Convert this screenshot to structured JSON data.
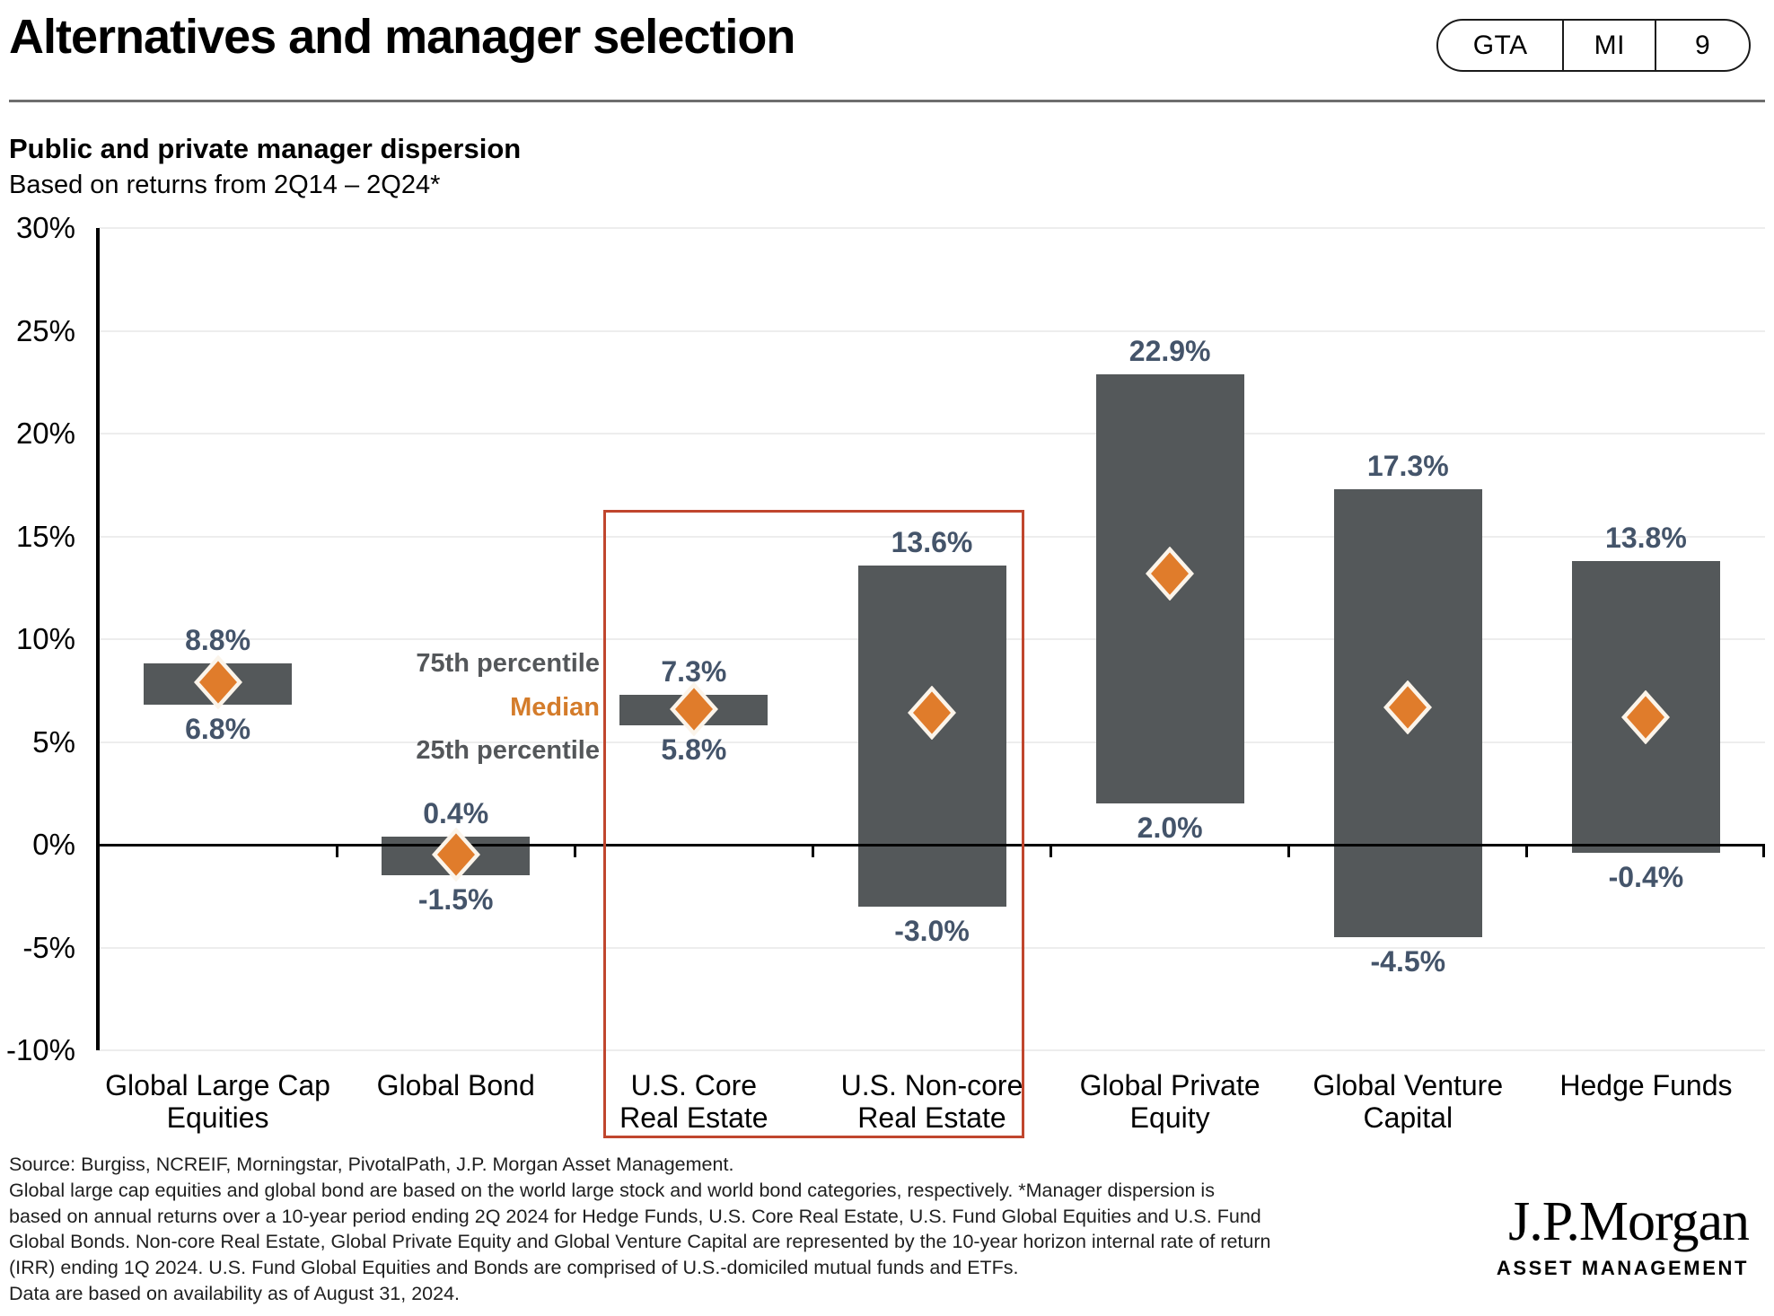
{
  "header": {
    "title": "Alternatives and manager selection",
    "badge": [
      "GTA",
      "MI",
      "9"
    ]
  },
  "chart": {
    "title": "Public and private manager dispersion",
    "subtitle": "Based on returns from 2Q14 – 2Q24*",
    "annotations": {
      "p75": "75th percentile",
      "median": "Median",
      "p25": "25th percentile"
    }
  },
  "chart_data": {
    "type": "bar",
    "subtype": "floating-range-bars-with-median-diamond",
    "title": "Public and private manager dispersion",
    "subtitle": "Based on returns from 2Q14 – 2Q24*",
    "xlabel": "",
    "ylabel": "",
    "ylim": [
      -10,
      30
    ],
    "ytick_values": [
      30,
      25,
      20,
      15,
      10,
      5,
      0,
      -5,
      -10
    ],
    "ytick_labels": [
      "30%",
      "25%",
      "20%",
      "15%",
      "10%",
      "5%",
      "0%",
      "-5%",
      "-10%"
    ],
    "grid": true,
    "categories": [
      "Global Large Cap\nEquities",
      "Global Bond",
      "U.S. Core\nReal Estate",
      "U.S. Non-core\nReal Estate",
      "Global Private\nEquity",
      "Global Venture\nCapital",
      "Hedge Funds"
    ],
    "series": [
      {
        "name": "75th percentile",
        "values": [
          8.8,
          0.4,
          7.3,
          13.6,
          22.9,
          17.3,
          13.8
        ],
        "labels": [
          "8.8%",
          "0.4%",
          "7.3%",
          "13.6%",
          "22.9%",
          "17.3%",
          "13.8%"
        ]
      },
      {
        "name": "25th percentile",
        "values": [
          6.8,
          -1.5,
          5.8,
          -3.0,
          2.0,
          -4.5,
          -0.4
        ],
        "labels": [
          "6.8%",
          "-1.5%",
          "5.8%",
          "-3.0%",
          "2.0%",
          "-4.5%",
          "-0.4%"
        ]
      },
      {
        "name": "Median (diamond marker, unlabeled on chart; values estimated from marker position)",
        "values": [
          7.9,
          -0.5,
          6.6,
          6.4,
          13.2,
          6.7,
          6.2
        ]
      }
    ],
    "highlighted_categories": [
      "U.S. Core\nReal Estate",
      "U.S. Non-core\nReal Estate"
    ],
    "legend_position": "inline-left-of-highlight-box"
  },
  "footer": {
    "source": "Source: Burgiss, NCREIF, Morningstar, PivotalPath, J.P. Morgan Asset Management.",
    "notes": "Global large cap equities and global bond are based on the world large stock and world bond categories, respectively. *Manager dispersion is\nbased on annual returns over a 10-year period ending 2Q 2024 for Hedge Funds, U.S. Core Real Estate, U.S. Fund Global Equities and U.S. Fund\nGlobal Bonds. Non-core Real Estate, Global Private Equity and Global Venture Capital are represented by the 10-year horizon internal rate of return\n(IRR) ending 1Q 2024. U.S. Fund Global Equities and Bonds are comprised of U.S.-domiciled mutual funds and ETFs.",
    "data_note": "Data are based on availability as of August 31, 2024."
  },
  "logo": {
    "brand": "J.P.Morgan",
    "unit": "ASSET MANAGEMENT"
  },
  "colors": {
    "bar": "#54585A",
    "median_diamond": "#E07C2B",
    "diamond_outline": "#FBF4EA",
    "value_label": "#44546A",
    "percentile_label": "#54575A",
    "median_label": "#D47C2B",
    "highlight_box": "#C0462E",
    "gridline": "#EDEDED"
  }
}
